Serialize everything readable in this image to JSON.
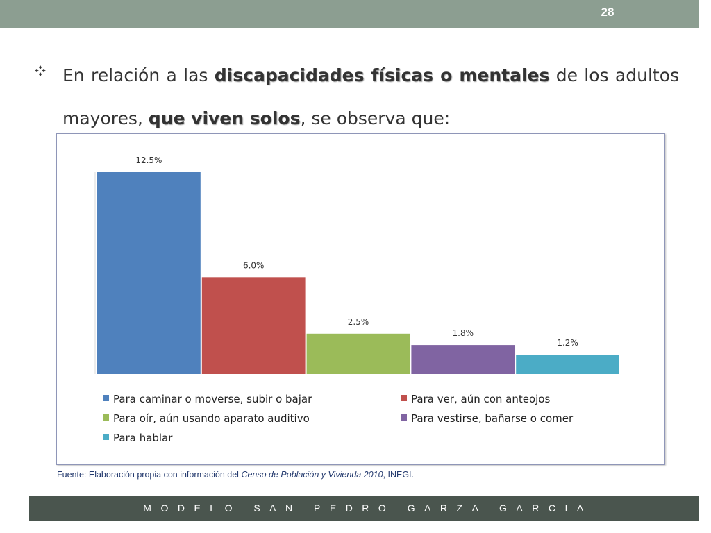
{
  "slide": {
    "page_number": "28",
    "heading_parts": [
      "En relación a las ",
      "discapacidades físicas o mentales",
      " de los adultos mayores, ",
      "que viven solos",
      ", se observa que:"
    ],
    "source_parts": [
      "Fuente: Elaboración propia con información del ",
      "Censo de Población y Vivienda  2010",
      ", INEGI."
    ],
    "footer": "MODELO SAN PEDRO GARZA GARCIA",
    "colors": {
      "topbar": "#8c9e91",
      "footer": "#4a554e"
    },
    "icons": {
      "bullet": "diamond-bullet-icon"
    }
  },
  "chart_data": {
    "type": "bar",
    "categories": [
      "Para caminar o moverse, subir o bajar",
      "Para ver, aún con anteojos",
      "Para oír, aún usando aparato auditivo",
      "Para vestirse, bañarse o comer",
      "Para hablar"
    ],
    "values": [
      12.5,
      6.0,
      2.5,
      1.8,
      1.2
    ],
    "labels": [
      "12.5%",
      "6.0%",
      "2.5%",
      "1.8%",
      "1.2%"
    ],
    "colors": [
      "#4f81bd",
      "#c0504d",
      "#9bbb59",
      "#8064a2",
      "#4bacc6"
    ],
    "unit": "%",
    "ylim": [
      0,
      12.5
    ],
    "grid": false,
    "legend_position": "bottom"
  }
}
